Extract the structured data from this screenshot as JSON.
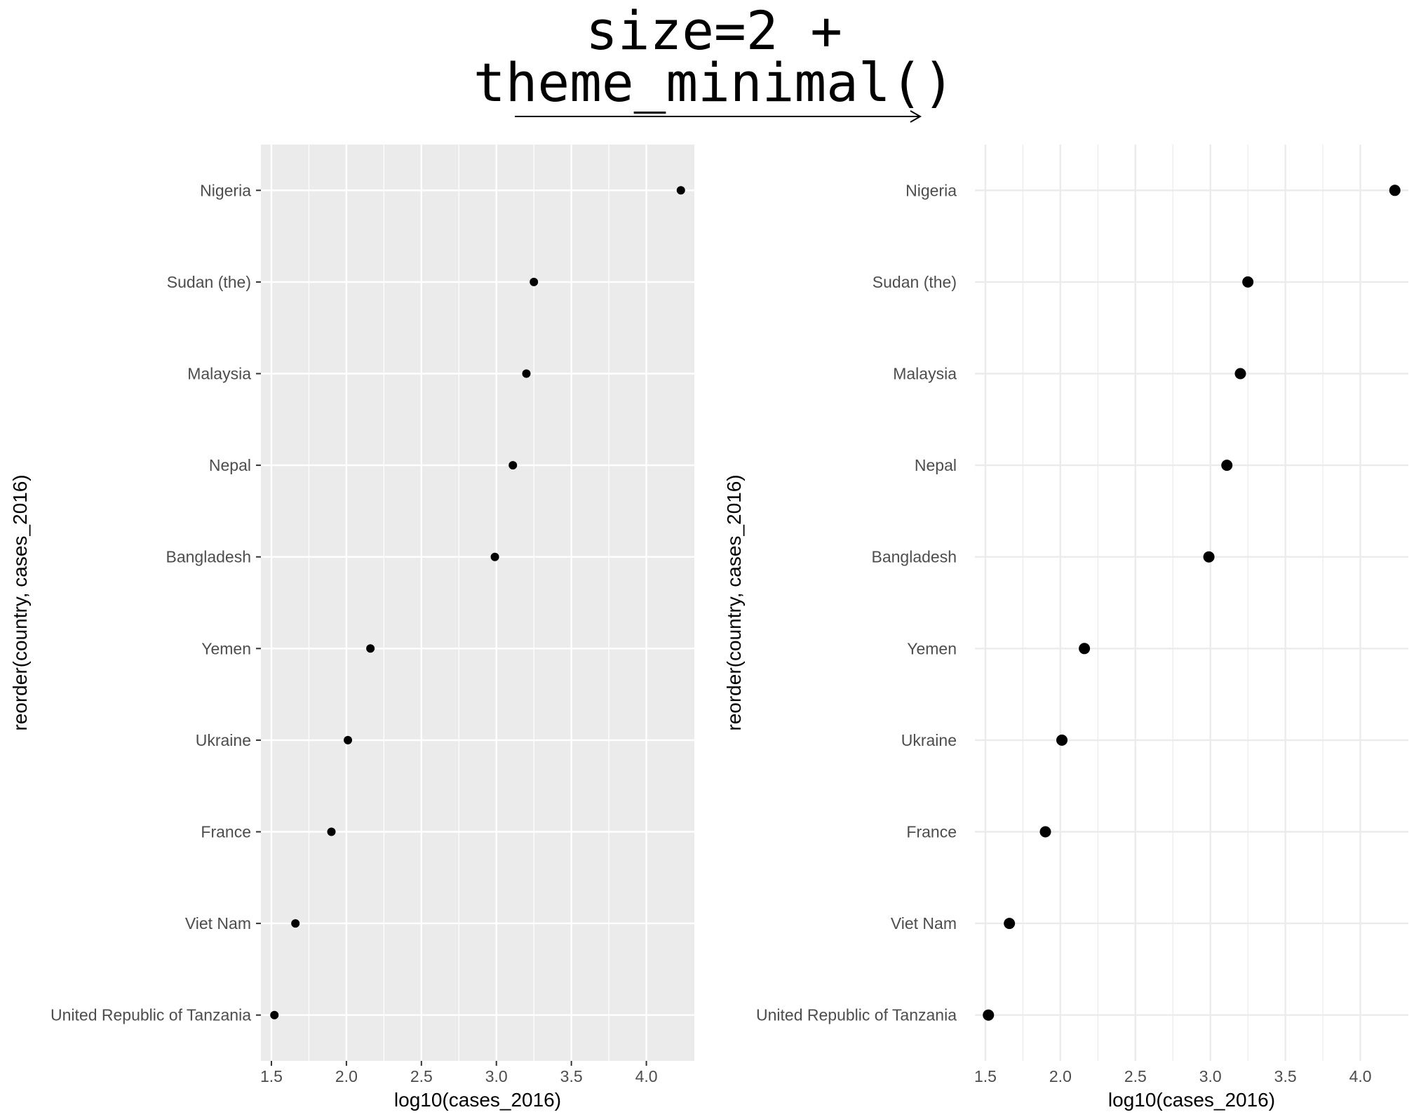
{
  "annotation": {
    "lines": [
      "size=2 +",
      "theme_minimal()"
    ],
    "arrow": "right-arrow"
  },
  "colors": {
    "panel_bg_gray": "#ebebeb",
    "grid_gray": "#ffffff",
    "grid_minimal": "#ebebeb",
    "point": "#000000",
    "text": "#000000",
    "tick_text": "#4d4d4d"
  },
  "chart_data": [
    {
      "type": "scatter",
      "theme": "theme_gray",
      "point_size": "default",
      "xlabel": "log10(cases_2016)",
      "ylabel": "reorder(country, cases_2016)",
      "xlim": [
        1.43,
        4.32
      ],
      "xticks": [
        1.5,
        2.0,
        2.5,
        3.0,
        3.5,
        4.0
      ],
      "xtick_labels": [
        "1.5",
        "2.0",
        "2.5",
        "3.0",
        "3.5",
        "4.0"
      ],
      "grid": true,
      "categories": [
        "United Republic of Tanzania",
        "Viet Nam",
        "France",
        "Ukraine",
        "Yemen",
        "Bangladesh",
        "Nepal",
        "Malaysia",
        "Sudan (the)",
        "Nigeria"
      ],
      "values": [
        1.52,
        1.66,
        1.9,
        2.01,
        2.16,
        2.99,
        3.11,
        3.2,
        3.25,
        4.23
      ]
    },
    {
      "type": "scatter",
      "theme": "theme_minimal",
      "point_size": 2,
      "xlabel": "log10(cases_2016)",
      "ylabel": "reorder(country, cases_2016)",
      "xlim": [
        1.43,
        4.32
      ],
      "xticks": [
        1.5,
        2.0,
        2.5,
        3.0,
        3.5,
        4.0
      ],
      "xtick_labels": [
        "1.5",
        "2.0",
        "2.5",
        "3.0",
        "3.5",
        "4.0"
      ],
      "grid": true,
      "categories": [
        "United Republic of Tanzania",
        "Viet Nam",
        "France",
        "Ukraine",
        "Yemen",
        "Bangladesh",
        "Nepal",
        "Malaysia",
        "Sudan (the)",
        "Nigeria"
      ],
      "values": [
        1.52,
        1.66,
        1.9,
        2.01,
        2.16,
        2.99,
        3.11,
        3.2,
        3.25,
        4.23
      ]
    }
  ]
}
